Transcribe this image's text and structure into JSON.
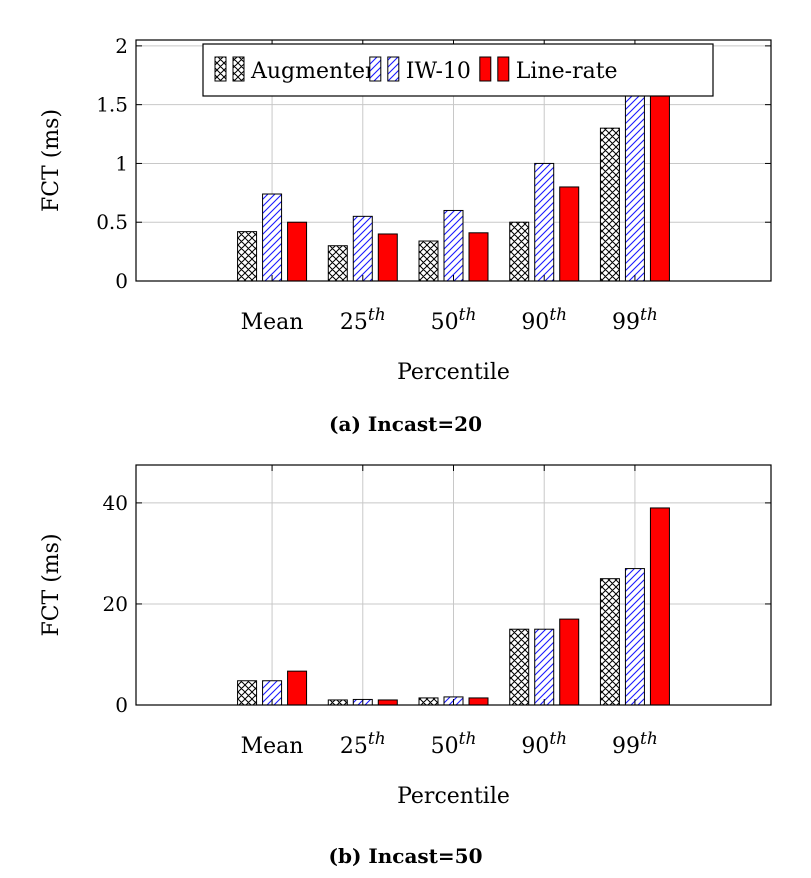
{
  "chart_data": [
    {
      "type": "bar",
      "categories": [
        "Mean",
        "25th",
        "50th",
        "90th",
        "99th"
      ],
      "category_labels": [
        {
          "base": "Mean",
          "sup": ""
        },
        {
          "base": "25",
          "sup": "th"
        },
        {
          "base": "50",
          "sup": "th"
        },
        {
          "base": "90",
          "sup": "th"
        },
        {
          "base": "99",
          "sup": "th"
        }
      ],
      "series": [
        {
          "name": "Augmenter",
          "values": [
            0.42,
            0.3,
            0.34,
            0.5,
            1.3
          ],
          "pattern": "crosshatch",
          "color": "#000000"
        },
        {
          "name": "IW-10",
          "values": [
            0.74,
            0.55,
            0.6,
            1.0,
            1.75
          ],
          "pattern": "diagonal",
          "color": "#1a1aff"
        },
        {
          "name": "Line-rate",
          "values": [
            0.5,
            0.4,
            0.41,
            0.8,
            1.6
          ],
          "pattern": "solid",
          "color": "#ff0000"
        }
      ],
      "xlabel": "Percentile",
      "ylabel": "FCT (ms)",
      "ylim": [
        0,
        2.05
      ],
      "yticks": [
        "0",
        "0.5",
        "1",
        "1.5",
        "2"
      ],
      "ytick_values": [
        0,
        0.5,
        1,
        1.5,
        2
      ],
      "grid": true,
      "legend": "top-center",
      "caption": "(a) Incast=20"
    },
    {
      "type": "bar",
      "categories": [
        "Mean",
        "25th",
        "50th",
        "90th",
        "99th"
      ],
      "category_labels": [
        {
          "base": "Mean",
          "sup": ""
        },
        {
          "base": "25",
          "sup": "th"
        },
        {
          "base": "50",
          "sup": "th"
        },
        {
          "base": "90",
          "sup": "th"
        },
        {
          "base": "99",
          "sup": "th"
        }
      ],
      "series": [
        {
          "name": "Augmenter",
          "values": [
            4.8,
            1.0,
            1.4,
            15,
            25
          ],
          "pattern": "crosshatch",
          "color": "#000000"
        },
        {
          "name": "IW-10",
          "values": [
            4.8,
            1.1,
            1.6,
            15,
            27
          ],
          "pattern": "diagonal",
          "color": "#1a1aff"
        },
        {
          "name": "Line-rate",
          "values": [
            6.7,
            1.0,
            1.4,
            17,
            39
          ],
          "pattern": "solid",
          "color": "#ff0000"
        }
      ],
      "xlabel": "Percentile",
      "ylabel": "FCT (ms)",
      "ylim": [
        0,
        47.5
      ],
      "yticks": [
        "0",
        "20",
        "40"
      ],
      "ytick_values": [
        0,
        20,
        40
      ],
      "grid": true,
      "legend": "none",
      "caption": "(b) Incast=50"
    }
  ]
}
